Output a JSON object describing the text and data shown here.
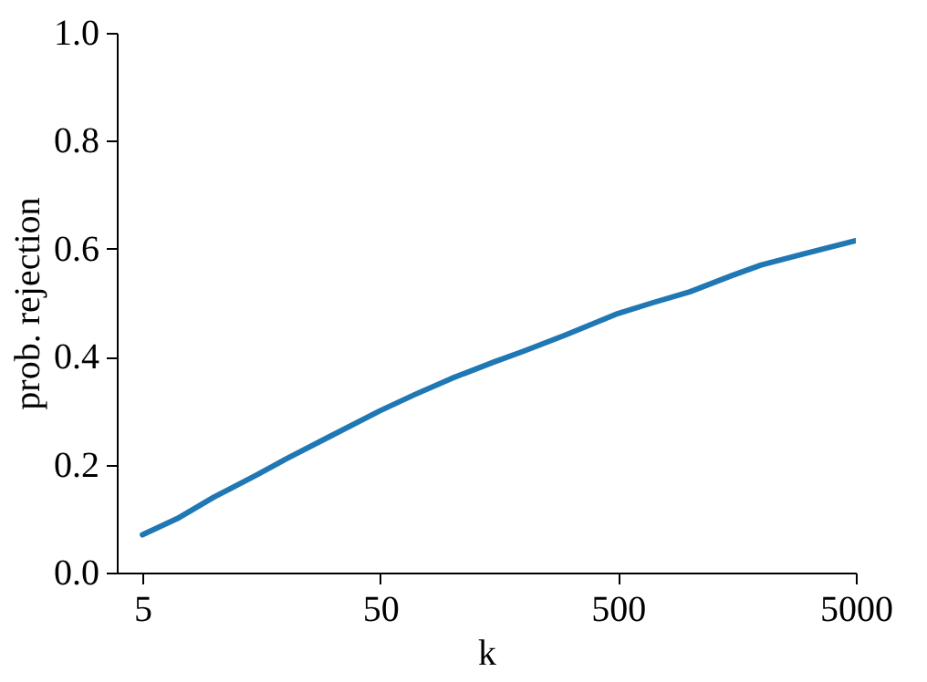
{
  "chart_data": {
    "type": "line",
    "xlabel": "k",
    "ylabel": "prob. rejection",
    "log": "x",
    "x": [
      5,
      7,
      10,
      15,
      20,
      30,
      50,
      70,
      100,
      150,
      200,
      300,
      500,
      700,
      1000,
      1500,
      2000,
      3000,
      5000
    ],
    "series": [
      {
        "color": "#1f77b4",
        "values": [
          0.07,
          0.1,
          0.14,
          0.18,
          0.21,
          0.25,
          0.3,
          0.33,
          0.36,
          0.39,
          0.41,
          0.44,
          0.48,
          0.5,
          0.52,
          0.55,
          0.57,
          0.59,
          0.615
        ]
      }
    ],
    "xlim": [
      3.9,
      5000
    ],
    "xticks": [
      5,
      50,
      500,
      5000
    ],
    "ylim": [
      0,
      1
    ],
    "yticks": [
      {
        "value": 0,
        "label": "0.0"
      },
      0.2,
      0.4,
      0.6,
      0.8,
      {
        "value": 1,
        "label": "1.0"
      }
    ],
    "grid": false,
    "marker": "none",
    "line_style": "solid"
  }
}
